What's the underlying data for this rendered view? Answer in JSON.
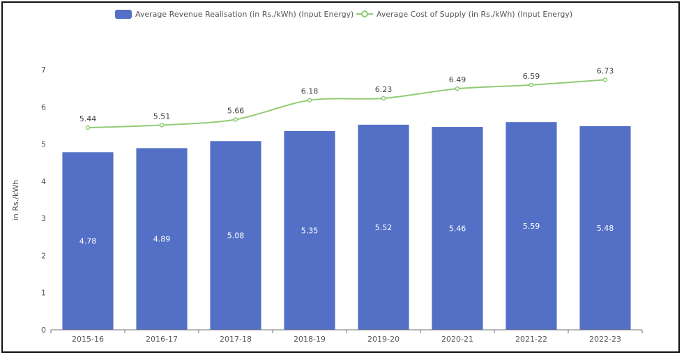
{
  "chart_data": {
    "type": "bar",
    "categories": [
      "2015-16",
      "2016-17",
      "2017-18",
      "2018-19",
      "2019-20",
      "2020-21",
      "2021-22",
      "2022-23"
    ],
    "series": [
      {
        "name": "Average Revenue Realisation (in Rs./kWh) (Input Energy)",
        "type": "bar",
        "color": "#5470c6",
        "values": [
          4.78,
          4.89,
          5.08,
          5.35,
          5.52,
          5.46,
          5.59,
          5.48
        ],
        "labels": [
          "4.78",
          "4.89",
          "5.08",
          "5.35",
          "5.52",
          "5.46",
          "5.59",
          "5.48"
        ]
      },
      {
        "name": "Average Cost of Supply (in Rs./kWh) (Input Energy)",
        "type": "line",
        "color": "#91cc75",
        "values": [
          5.44,
          5.51,
          5.66,
          6.18,
          6.23,
          6.49,
          6.59,
          6.73
        ],
        "labels": [
          "5.44",
          "5.51",
          "5.66",
          "6.18",
          "6.23",
          "6.49",
          "6.59",
          "6.73"
        ]
      }
    ],
    "ylabel": "in Rs./kWh",
    "xlabel": "",
    "ylim": [
      0,
      7
    ],
    "yticks": [
      "0",
      "1",
      "2",
      "3",
      "4",
      "5",
      "6",
      "7"
    ],
    "grid": false,
    "legend_position": "top-center"
  }
}
